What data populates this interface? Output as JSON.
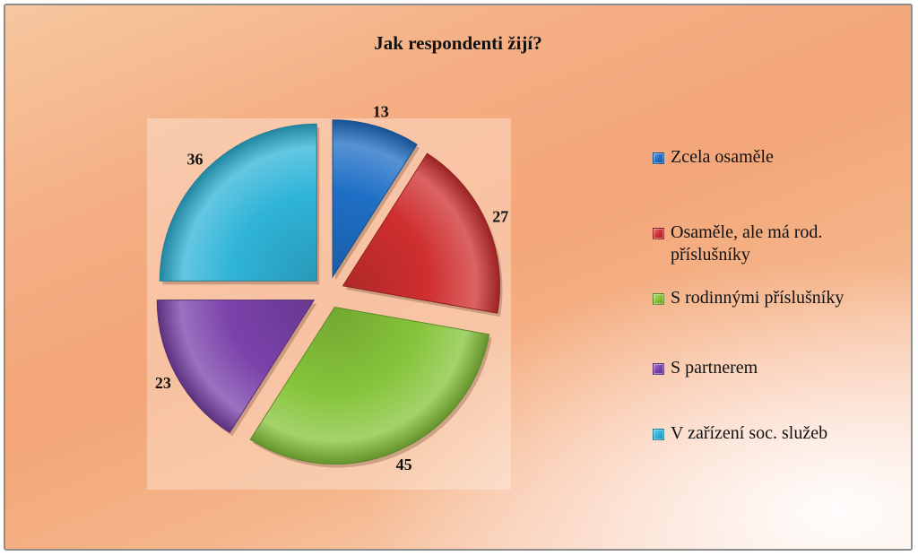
{
  "chart_data": {
    "type": "pie",
    "title": "Jak respondenti žijí?",
    "categories": [
      "Zcela osaměle",
      "Osaměle, ale má rod. příslušníky",
      "S rodinnými příslušníky",
      "S partnerem",
      "V zařízení soc. služeb"
    ],
    "values": [
      13,
      27,
      45,
      23,
      36
    ],
    "colors": [
      "#1f6fc6",
      "#cf2f2f",
      "#86c43a",
      "#7a42aa",
      "#2fb4d8"
    ],
    "exploded": true,
    "legend_position": "right",
    "data_labels": [
      "13",
      "27",
      "45",
      "23",
      "36"
    ]
  }
}
